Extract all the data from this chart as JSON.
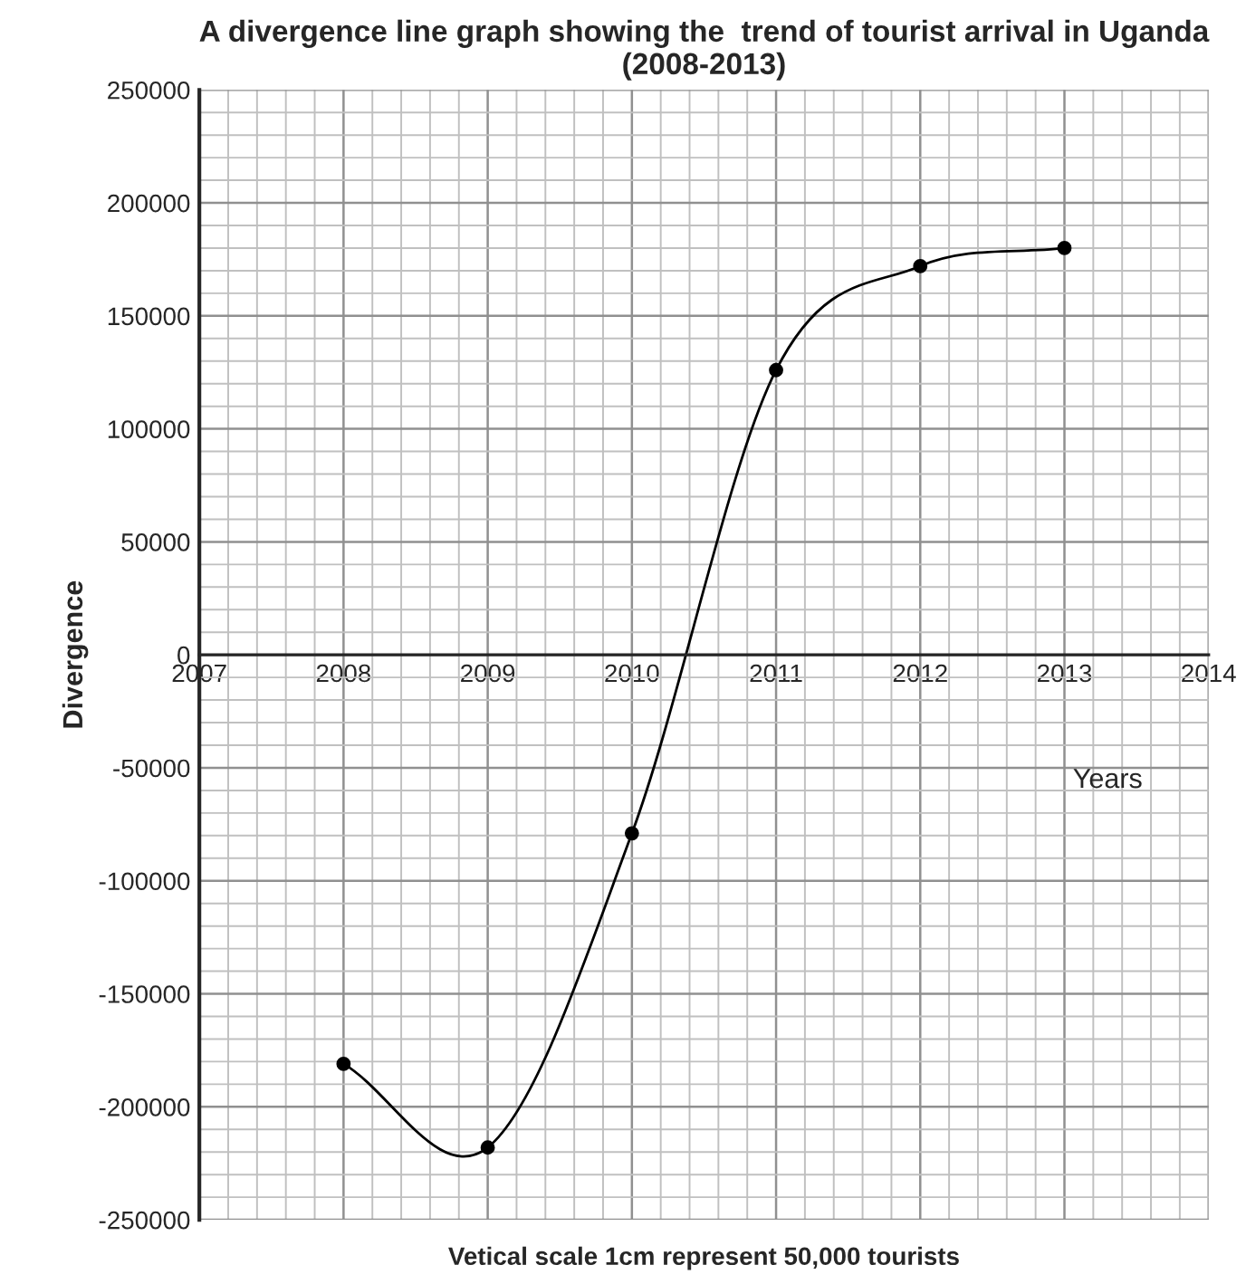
{
  "chart_data": {
    "type": "line",
    "title": "A divergence line graph showing the  trend of tourist arrival in Uganda (2008-2013)",
    "xlabel": "Years",
    "ylabel": "Divergence",
    "annotations": [
      "Vetical scale 1cm represent 50,000 tourists"
    ],
    "x": [
      2008,
      2009,
      2010,
      2011,
      2012,
      2013
    ],
    "series": [
      {
        "color": "#000000",
        "values": [
          -181000,
          -218000,
          -79000,
          126000,
          172000,
          180000
        ]
      }
    ],
    "xlim": [
      2007,
      2014
    ],
    "xticks": [
      2007,
      2008,
      2009,
      2010,
      2011,
      2012,
      2013,
      2014
    ],
    "ylim": [
      -250000,
      250000
    ],
    "yticks": [
      -250000,
      -200000,
      -150000,
      -100000,
      -50000,
      0,
      50000,
      100000,
      150000,
      200000,
      250000
    ],
    "grid": true,
    "marker": "circle",
    "line_style": "solid"
  }
}
